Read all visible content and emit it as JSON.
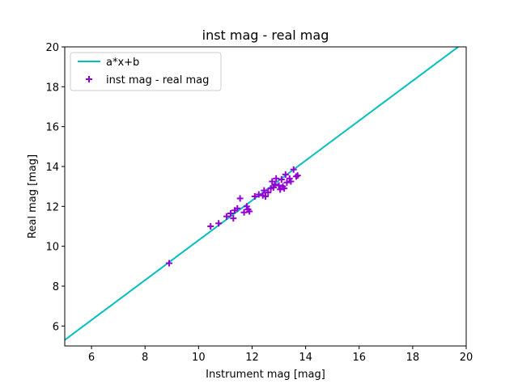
{
  "chart_data": {
    "type": "scatter",
    "title": "inst mag - real mag",
    "xlabel": "Instrument mag [mag]",
    "ylabel": "Real mag [mag]",
    "xlim": [
      5,
      20
    ],
    "ylim": [
      5,
      20
    ],
    "xticks": [
      6,
      8,
      10,
      12,
      14,
      16,
      18,
      20
    ],
    "yticks": [
      6,
      8,
      10,
      12,
      14,
      16,
      18,
      20
    ],
    "grid": false,
    "legend_position": "top-left",
    "line": {
      "name": "a*x+b",
      "color": "#00bfbf",
      "x": [
        5,
        19.8
      ],
      "y": [
        5.3,
        20.1
      ]
    },
    "series": [
      {
        "name": "inst mag - real mag",
        "marker": "plus",
        "color": "#9400d3",
        "points": [
          [
            8.9,
            9.15
          ],
          [
            10.45,
            11.0
          ],
          [
            10.75,
            11.15
          ],
          [
            11.05,
            11.5
          ],
          [
            11.2,
            11.65
          ],
          [
            11.3,
            11.4
          ],
          [
            11.35,
            11.8
          ],
          [
            11.45,
            11.9
          ],
          [
            11.55,
            12.4
          ],
          [
            11.7,
            11.7
          ],
          [
            11.8,
            12.0
          ],
          [
            11.85,
            11.85
          ],
          [
            11.9,
            11.75
          ],
          [
            12.1,
            12.5
          ],
          [
            12.25,
            12.6
          ],
          [
            12.4,
            12.55
          ],
          [
            12.45,
            12.8
          ],
          [
            12.5,
            12.5
          ],
          [
            12.6,
            12.7
          ],
          [
            12.7,
            12.9
          ],
          [
            12.75,
            13.25
          ],
          [
            12.8,
            12.95
          ],
          [
            12.85,
            13.1
          ],
          [
            12.9,
            13.4
          ],
          [
            13.0,
            13.05
          ],
          [
            13.05,
            12.85
          ],
          [
            13.1,
            13.35
          ],
          [
            13.15,
            13.0
          ],
          [
            13.2,
            12.9
          ],
          [
            13.25,
            13.6
          ],
          [
            13.3,
            13.2
          ],
          [
            13.4,
            13.4
          ],
          [
            13.45,
            13.25
          ],
          [
            13.55,
            13.85
          ],
          [
            13.65,
            13.5
          ],
          [
            13.7,
            13.55
          ]
        ]
      }
    ]
  }
}
